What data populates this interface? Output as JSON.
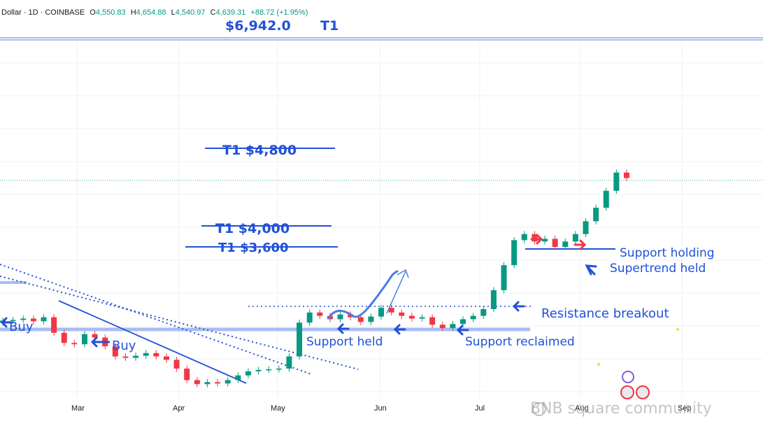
{
  "header": {
    "symbol": "Dollar · 1D · COINBASE",
    "o_label": "O",
    "o": "4,550.83",
    "h_label": "H",
    "h": "4,654.88",
    "l_label": "L",
    "l": "4,540.97",
    "c_label": "C",
    "c": "4,639.31",
    "change": "+88.72 (+1.95%)"
  },
  "top_target": {
    "price": "$6,942.0",
    "label": "T1"
  },
  "annotations": {
    "t1_4800": "T1 $4,800",
    "t1_4000": "T1 $4,000",
    "t1_3600": "T1 $3,600",
    "buy1": "Buy",
    "buy2": "Buy",
    "support_held": "Support held",
    "support_reclaimed": "Support reclaimed",
    "resistance_breakout": "Resistance breakout",
    "support_holding": "Support holding",
    "supertrend_held": "Supertrend held"
  },
  "watermark": "BNB square community",
  "colors": {
    "up": "#089981",
    "down": "#f23645",
    "annotation": "#2151d6",
    "support_band": "#a9bdf2",
    "red_arrow": "#f23645"
  },
  "chart_data": {
    "type": "candlestick",
    "title": "",
    "x_ticks": [
      "Mar",
      "Apr",
      "May",
      "Jun",
      "Jul",
      "Aug",
      "Sep"
    ],
    "close_path": [
      2530,
      2540,
      2560,
      2520,
      2580,
      2350,
      2200,
      2180,
      2330,
      2280,
      2150,
      2000,
      1980,
      2010,
      2050,
      2000,
      1950,
      1820,
      1650,
      1590,
      1620,
      1600,
      1650,
      1720,
      1780,
      1800,
      1810,
      1820,
      2000,
      2500,
      2650,
      2600,
      2550,
      2620,
      2580,
      2510,
      2590,
      2720,
      2650,
      2600,
      2560,
      2580,
      2470,
      2420,
      2480,
      2550,
      2600,
      2700,
      2980,
      3350,
      3720,
      3810,
      3700,
      3740,
      3620,
      3700,
      3810,
      4000,
      4200,
      4450,
      4720,
      4639
    ],
    "levels": {
      "t1_targets": [
        4800,
        4000,
        3600
      ],
      "resistance": 2730,
      "support_band": 2400,
      "support_holding": 3600
    }
  }
}
